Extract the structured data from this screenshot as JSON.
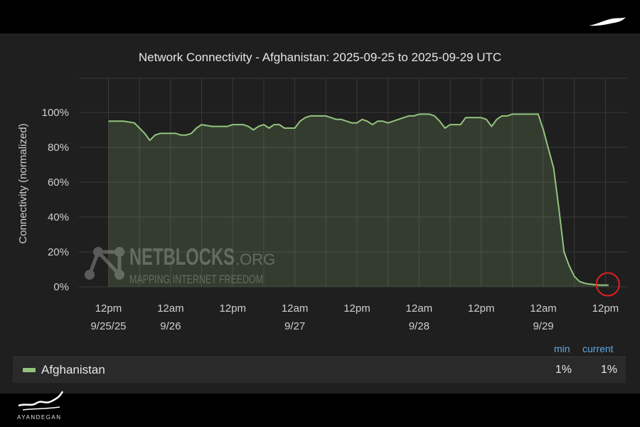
{
  "chart_data": {
    "type": "area",
    "title": "Network Connectivity - Afghanistan: 2025-09-25 to 2025-09-29 UTC",
    "ylabel": "Connectivity (normalized)",
    "xlabel": "",
    "ylim": [
      0,
      100
    ],
    "yticks": [
      "0%",
      "20%",
      "40%",
      "60%",
      "80%",
      "100%"
    ],
    "ytick_values": [
      0,
      20,
      40,
      60,
      80,
      100
    ],
    "xticks": [
      {
        "line1": "12pm",
        "line2": "9/25/25",
        "t": 12
      },
      {
        "line1": "12am",
        "line2": "9/26",
        "t": 24
      },
      {
        "line1": "12pm",
        "line2": "",
        "t": 36
      },
      {
        "line1": "12am",
        "line2": "9/27",
        "t": 48
      },
      {
        "line1": "12pm",
        "line2": "",
        "t": 60
      },
      {
        "line1": "12am",
        "line2": "9/28",
        "t": 72
      },
      {
        "line1": "12pm",
        "line2": "",
        "t": 84
      },
      {
        "line1": "12am",
        "line2": "9/29",
        "t": 96
      },
      {
        "line1": "12pm",
        "line2": "",
        "t": 108
      }
    ],
    "grid": true,
    "series": [
      {
        "name": "Afghanistan",
        "color": "#93c47d",
        "x": [
          12,
          14,
          15,
          17,
          18,
          19,
          20,
          21,
          22,
          24,
          25,
          26,
          27,
          28,
          29,
          30,
          32,
          33,
          35,
          36,
          38,
          39,
          40,
          41,
          42,
          43,
          44,
          45,
          46,
          47,
          48,
          49,
          50,
          51,
          52,
          53,
          54,
          55,
          56,
          57,
          58,
          59,
          60,
          61,
          62,
          63,
          64,
          65,
          66,
          67,
          68,
          69,
          70,
          71,
          72,
          73,
          74,
          75,
          76,
          77,
          78,
          79,
          80,
          81,
          82,
          83,
          84,
          85,
          86,
          87,
          88,
          89,
          90,
          91,
          92,
          93,
          94,
          95,
          96,
          97,
          98,
          99,
          100,
          101,
          102,
          103,
          104,
          105,
          106,
          107,
          107.4,
          107.8,
          108.2,
          108.6
        ],
        "y": [
          95,
          95,
          95,
          94,
          91,
          88,
          84,
          87,
          88,
          88,
          88,
          87,
          87,
          88,
          91,
          93,
          92,
          92,
          92,
          93,
          93,
          92,
          90,
          92,
          93,
          91,
          93,
          93,
          91,
          91,
          91,
          95,
          97,
          98,
          98,
          98,
          98,
          97,
          96,
          96,
          95,
          94,
          94,
          96,
          95,
          93,
          95,
          95,
          94,
          95,
          96,
          97,
          98,
          98,
          99,
          99,
          99,
          98,
          95,
          91,
          93,
          93,
          93,
          97,
          97,
          97,
          97,
          96,
          92,
          96,
          98,
          98,
          99,
          99,
          99,
          99,
          99,
          99,
          90,
          79,
          68,
          45,
          20,
          12,
          6,
          3,
          2,
          1.5,
          1.2,
          1,
          1,
          1,
          1,
          1
        ]
      }
    ],
    "annotation": "red-circle-at-last-point"
  },
  "legend": {
    "min_label": "min",
    "current_label": "current",
    "series_name": "Afghanistan",
    "min_value": "1%",
    "current_value": "1%"
  },
  "watermark": {
    "brand": "NETBLOCKS",
    "suffix": ".ORG",
    "tagline": "MAPPING INTERNET FREEDOM"
  },
  "corner_logo_text": "AYANDEGAN"
}
